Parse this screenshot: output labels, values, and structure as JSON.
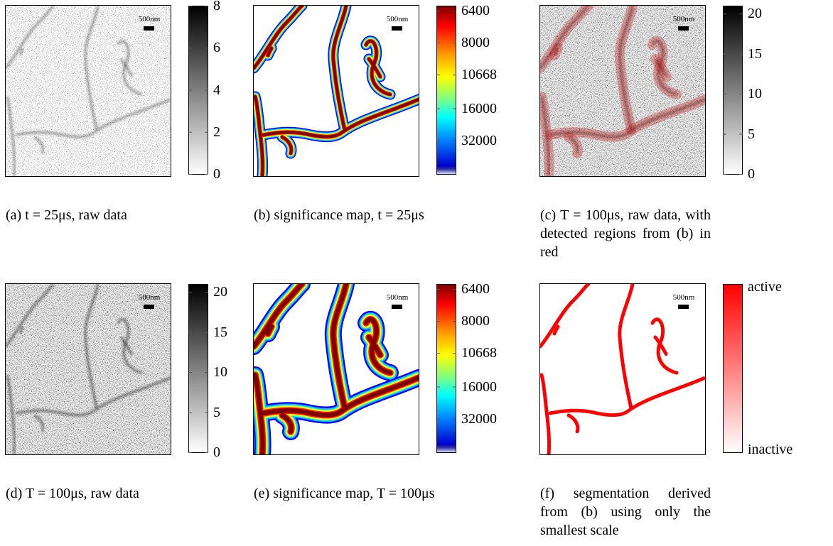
{
  "panels": [
    {
      "label": "(a)",
      "caption": "t = 25μs, raw data",
      "scalebar": "500nm",
      "colorbar": [
        8,
        6,
        4,
        2,
        0
      ]
    },
    {
      "label": "(b)",
      "caption": "significance map, t = 25μs",
      "scalebar": "500nm",
      "colorbar": [
        6400,
        8000,
        10668,
        16000,
        32000
      ]
    },
    {
      "label": "(c)",
      "caption": "T = 100μs, raw data, with detected regions from (b) in red",
      "scalebar": "500nm",
      "colorbar": [
        20,
        15,
        10,
        5,
        0
      ]
    },
    {
      "label": "(d)",
      "caption": "T = 100μs, raw data",
      "scalebar": "500nm",
      "colorbar": [
        20,
        15,
        10,
        5,
        0
      ]
    },
    {
      "label": "(e)",
      "caption": "significance map, T = 100μs",
      "scalebar": "500nm",
      "colorbar": [
        6400,
        8000,
        10668,
        16000,
        32000
      ]
    },
    {
      "label": "(f)",
      "caption": "segmentation derived from (b) using only the smallest scale",
      "scalebar": "500nm",
      "colorbar": [
        "active",
        "inactive"
      ]
    }
  ]
}
